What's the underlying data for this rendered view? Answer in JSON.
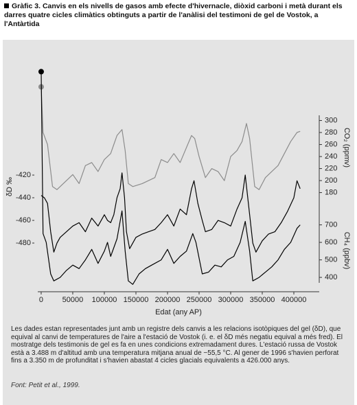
{
  "chart_data": {
    "type": "line",
    "title": "Gràfic 3. Canvis en els nivells de gasos amb efecte d'hivernacle, diòxid carboni i metà durant els darres quatre cicles climàtics obtinguts a partir de l'anàlisi del testimoni de gel de Vostok, a l'Antàrtida",
    "x_label": "Edat (any AP)",
    "y_label": "δD ‰",
    "y2_label": "CO₂ (ppmv)",
    "y3_label": "CH₄ (ppbv)",
    "caption": "Les dades estan representades junt amb un registre dels canvis a les relacions isotòpiques del gel (δD), que equival al canvi de temperatures de l'aire a l'estació de Vostok (i. e. el δD més negatiu equival a més fred). El mostratge dels testimonis de gel es fa en unes condicions extremadament dures. L'estació russa de Vostok està a 3.488 m d'altitud amb una temperatura mitjana anual de −55,5 °C. Al gener de 1996 s'havien perforat fins a 3.350 m de profunditat i s'havien abastat 4 cicles glacials equivalents a 426.000 anys.",
    "source": "Font: Petit et al., 1999.",
    "xlim": [
      -5400,
      440200
    ],
    "xticks": [
      0,
      50000,
      100000,
      150000,
      200000,
      250000,
      300000,
      350000,
      400000
    ],
    "ylim": [
      -523,
      -323
    ],
    "yticks": [
      -480,
      -460,
      -440,
      -420
    ],
    "y2lim": [
      15,
      392
    ],
    "y2ticks": [
      180,
      200,
      220,
      240,
      260,
      280,
      300
    ],
    "y3lim": [
      318,
      1612
    ],
    "y3ticks": [
      400,
      500,
      600,
      700
    ],
    "series": [
      {
        "axis": "y2",
        "color": "#8c8c8c",
        "marker": "start",
        "x": [
          0,
          3000,
          10000,
          18000,
          25000,
          40000,
          50000,
          60000,
          70000,
          80000,
          90000,
          100000,
          110000,
          115000,
          120000,
          128000,
          133000,
          138000,
          145000,
          160000,
          170000,
          180000,
          190000,
          200000,
          210000,
          220000,
          230000,
          238000,
          243000,
          250000,
          260000,
          270000,
          280000,
          290000,
          300000,
          310000,
          318000,
          325000,
          330000,
          338000,
          345000,
          355000,
          365000,
          375000,
          385000,
          395000,
          405000,
          410000
        ],
        "values": [
          356,
          280,
          260,
          190,
          185,
          200,
          210,
          195,
          225,
          230,
          215,
          235,
          245,
          260,
          275,
          285,
          250,
          195,
          190,
          195,
          200,
          205,
          235,
          230,
          245,
          230,
          255,
          275,
          270,
          240,
          205,
          220,
          215,
          200,
          240,
          250,
          265,
          295,
          270,
          190,
          185,
          205,
          215,
          225,
          245,
          265,
          280,
          282
        ]
      },
      {
        "axis": "y",
        "color": "#000000",
        "x": [
          0,
          5000,
          10000,
          15000,
          20000,
          25000,
          30000,
          40000,
          50000,
          60000,
          70000,
          80000,
          90000,
          100000,
          105000,
          110000,
          115000,
          120000,
          125000,
          128000,
          132000,
          135000,
          140000,
          150000,
          160000,
          170000,
          180000,
          190000,
          200000,
          210000,
          220000,
          230000,
          238000,
          242000,
          248000,
          255000,
          260000,
          270000,
          280000,
          290000,
          300000,
          310000,
          318000,
          323000,
          328000,
          335000,
          340000,
          350000,
          360000,
          370000,
          380000,
          390000,
          400000,
          405000,
          410000
        ],
        "values": [
          -438,
          -440,
          -445,
          -470,
          -488,
          -480,
          -475,
          -470,
          -465,
          -462,
          -470,
          -458,
          -465,
          -455,
          -460,
          -462,
          -455,
          -440,
          -432,
          -418,
          -440,
          -470,
          -485,
          -475,
          -472,
          -470,
          -468,
          -462,
          -455,
          -465,
          -450,
          -455,
          -432,
          -425,
          -445,
          -460,
          -470,
          -468,
          -460,
          -462,
          -465,
          -450,
          -440,
          -420,
          -445,
          -480,
          -488,
          -478,
          -472,
          -470,
          -462,
          -452,
          -440,
          -425,
          -432
        ]
      },
      {
        "axis": "y3",
        "color": "#000000",
        "marker": "start",
        "x": [
          0,
          3000,
          8000,
          15000,
          20000,
          30000,
          40000,
          50000,
          60000,
          70000,
          80000,
          90000,
          100000,
          105000,
          110000,
          120000,
          128000,
          133000,
          138000,
          145000,
          155000,
          165000,
          175000,
          190000,
          200000,
          210000,
          220000,
          230000,
          240000,
          245000,
          255000,
          265000,
          275000,
          285000,
          295000,
          305000,
          315000,
          323000,
          330000,
          335000,
          345000,
          355000,
          365000,
          375000,
          385000,
          395000,
          405000,
          410000
        ],
        "values": [
          1575,
          650,
          600,
          420,
          380,
          400,
          440,
          470,
          450,
          500,
          560,
          480,
          550,
          600,
          520,
          620,
          780,
          550,
          380,
          360,
          420,
          450,
          470,
          500,
          560,
          480,
          520,
          550,
          650,
          600,
          420,
          430,
          470,
          460,
          500,
          520,
          600,
          720,
          550,
          380,
          400,
          430,
          460,
          500,
          560,
          600,
          680,
          700
        ]
      }
    ]
  }
}
